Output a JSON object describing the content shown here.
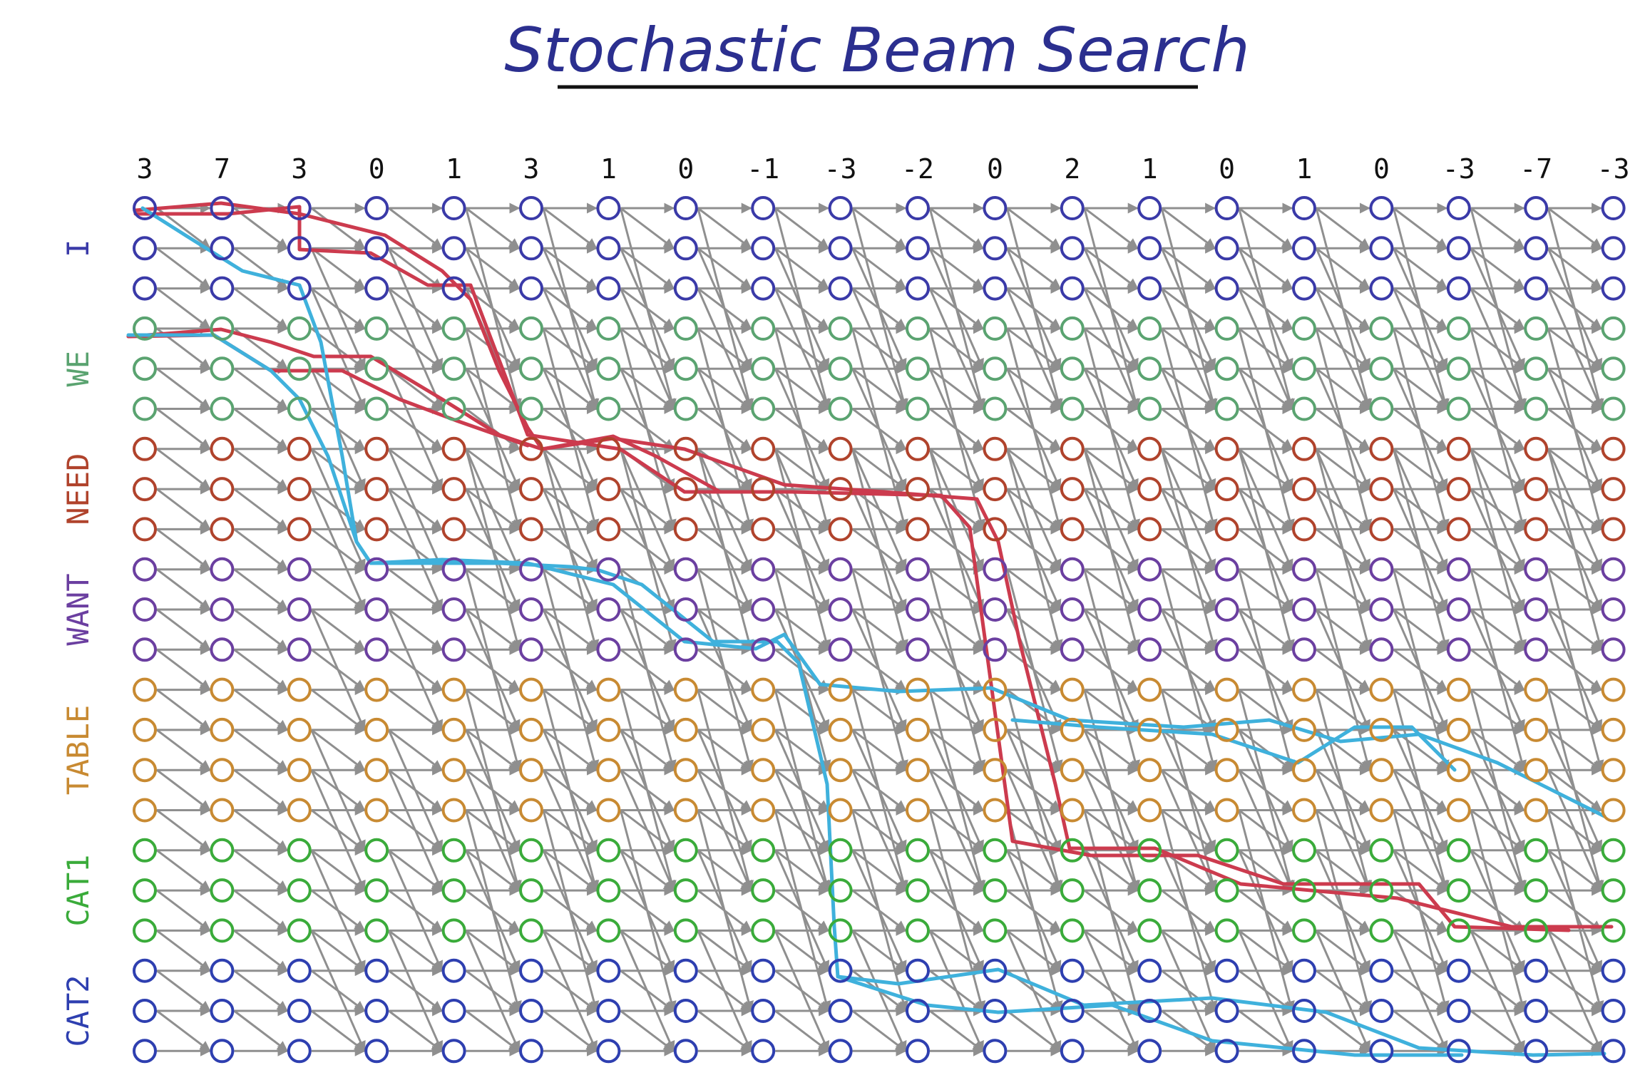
{
  "title": "Stochastic Beam Search",
  "observations": [
    "3",
    "7",
    "3",
    "0",
    "1",
    "3",
    "1",
    "0",
    "-1",
    "-3",
    "-2",
    "0",
    "2",
    "1",
    "0",
    "1",
    "0",
    "-3",
    "-7",
    "-3"
  ],
  "states": [
    {
      "label": "I",
      "color": "#3a3aa8",
      "rows": 3
    },
    {
      "label": "WE",
      "color": "#5aa370",
      "rows": 3
    },
    {
      "label": "NEED",
      "color": "#b0432c",
      "rows": 3
    },
    {
      "label": "WANT",
      "color": "#6b3fa0",
      "rows": 3
    },
    {
      "label": "TABLE",
      "color": "#c88a32",
      "rows": 4
    },
    {
      "label": "CAT1",
      "color": "#3aab3a",
      "rows": 3
    },
    {
      "label": "CAT2",
      "color": "#2e3fb0",
      "rows": 3
    }
  ],
  "colors": {
    "edge": "#8f8f8f",
    "beam_red": "#cc3b4e",
    "beam_blue": "#3fb1dc",
    "title": "#2b2f8f"
  }
}
